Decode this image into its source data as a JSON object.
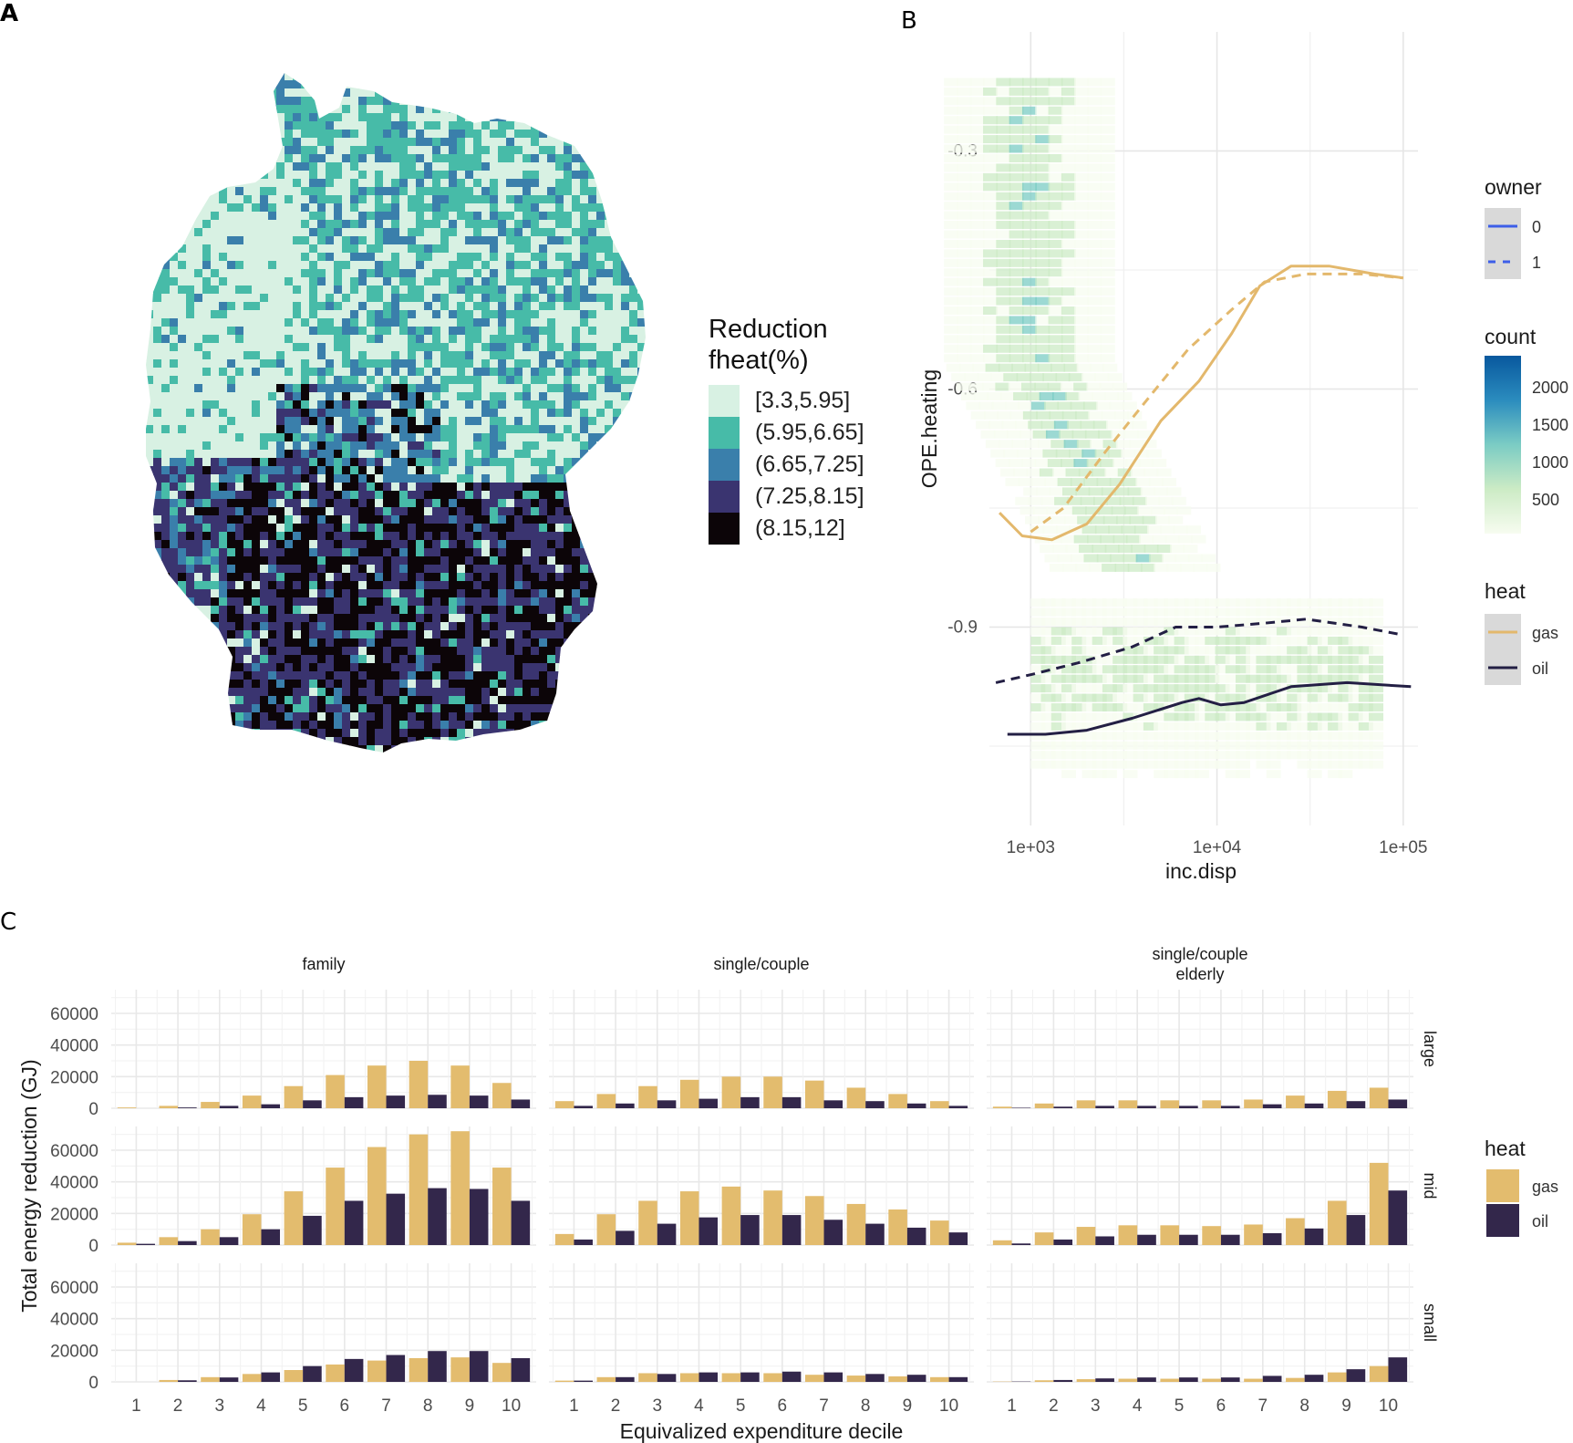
{
  "panels": {
    "a": "A",
    "b": "B",
    "c": "C"
  },
  "chart_data": [
    {
      "id": "A",
      "type": "choropleth-map",
      "region": "Germany",
      "legend": {
        "title_line1": "Reduction",
        "title_line2": "fheat(%)",
        "classes": [
          {
            "label": "[3.3,5.95]",
            "color": "#d8f1e3"
          },
          {
            "label": "(5.95,6.65]",
            "color": "#47bba8"
          },
          {
            "label": "(6.65,7.25]",
            "color": "#3a7fab"
          },
          {
            "label": "(7.25,8.15]",
            "color": "#3a3470"
          },
          {
            "label": "(8.15,12]",
            "color": "#0c0508"
          }
        ],
        "placement": "right"
      },
      "pattern_note": "North/West mostly lowest classes; South (Bavaria, Baden-Württemberg) mostly highest classes"
    },
    {
      "id": "B",
      "type": "heatmap+line",
      "xlabel": "inc.disp",
      "ylabel": "OPE.heating",
      "x_scale": "log10",
      "xlim": [
        600,
        120000
      ],
      "ylim": [
        -1.15,
        -0.15
      ],
      "x_ticks": [
        {
          "value": 1000,
          "label": "1e+03"
        },
        {
          "value": 10000,
          "label": "1e+04"
        },
        {
          "value": 100000,
          "label": "1e+05"
        }
      ],
      "y_ticks": [
        {
          "value": -0.3,
          "label": "-0.3"
        },
        {
          "value": -0.6,
          "label": "-0.6"
        },
        {
          "value": -0.9,
          "label": "-0.9"
        }
      ],
      "grid": true,
      "series": [
        {
          "name": "gas owner 0",
          "heat": "gas",
          "owner": "0",
          "dash": false,
          "points": [
            [
              680,
              -0.756
            ],
            [
              900,
              -0.785
            ],
            [
              1300,
              -0.79
            ],
            [
              2000,
              -0.77
            ],
            [
              3000,
              -0.72
            ],
            [
              5000,
              -0.64
            ],
            [
              8000,
              -0.59
            ],
            [
              12000,
              -0.53
            ],
            [
              17000,
              -0.47
            ],
            [
              25000,
              -0.445
            ],
            [
              40000,
              -0.445
            ],
            [
              70000,
              -0.455
            ],
            [
              100000,
              -0.46
            ]
          ]
        },
        {
          "name": "gas owner 1",
          "heat": "gas",
          "owner": "1",
          "dash": true,
          "points": [
            [
              1000,
              -0.78
            ],
            [
              1500,
              -0.75
            ],
            [
              2500,
              -0.68
            ],
            [
              4000,
              -0.62
            ],
            [
              7000,
              -0.55
            ],
            [
              12000,
              -0.5
            ],
            [
              18000,
              -0.465
            ],
            [
              30000,
              -0.455
            ],
            [
              60000,
              -0.455
            ],
            [
              100000,
              -0.46
            ]
          ]
        },
        {
          "name": "oil owner 0",
          "heat": "oil",
          "owner": "0",
          "dash": false,
          "points": [
            [
              750,
              -1.035
            ],
            [
              1200,
              -1.035
            ],
            [
              2000,
              -1.03
            ],
            [
              3500,
              -1.015
            ],
            [
              6500,
              -0.995
            ],
            [
              8000,
              -0.99
            ],
            [
              10500,
              -0.998
            ],
            [
              14000,
              -0.995
            ],
            [
              25000,
              -0.975
            ],
            [
              50000,
              -0.97
            ],
            [
              110000,
              -0.975
            ]
          ]
        },
        {
          "name": "oil owner 1",
          "heat": "oil",
          "owner": "1",
          "dash": true,
          "points": [
            [
              650,
              -0.97
            ],
            [
              1000,
              -0.96
            ],
            [
              1800,
              -0.945
            ],
            [
              3500,
              -0.925
            ],
            [
              6000,
              -0.9
            ],
            [
              10000,
              -0.9
            ],
            [
              18000,
              -0.895
            ],
            [
              30000,
              -0.89
            ],
            [
              60000,
              -0.9
            ],
            [
              100000,
              -0.91
            ]
          ]
        }
      ],
      "density_clusters": [
        {
          "x": [
            2000,
            60000
          ],
          "y": [
            -0.8,
            -0.2
          ],
          "peak": 2000
        },
        {
          "x": [
            1000,
            80000
          ],
          "y": [
            -1.1,
            -0.85
          ],
          "peak": 1500
        }
      ],
      "legends": {
        "owner": {
          "title": "owner",
          "items": [
            {
              "label": "0",
              "style": "solid"
            },
            {
              "label": "1",
              "style": "dashed"
            }
          ],
          "color": "#3d5ee8"
        },
        "count": {
          "title": "count",
          "ticks": [
            "2000",
            "1500",
            "1000",
            "500"
          ],
          "range": [
            0,
            2200
          ],
          "colors": [
            "#f7fcf0",
            "#ccebc5",
            "#7bccc4",
            "#2b8cbe",
            "#08589e"
          ]
        },
        "heat": {
          "title": "heat",
          "items": [
            {
              "label": "gas",
              "color": "#e3b86c"
            },
            {
              "label": "oil",
              "color": "#231f44"
            }
          ]
        }
      }
    },
    {
      "id": "C",
      "type": "bar",
      "xlabel": "Equivalized expenditure decile",
      "ylabel": "Total energy reduction (GJ)",
      "categories": [
        "1",
        "2",
        "3",
        "4",
        "5",
        "6",
        "7",
        "8",
        "9",
        "10"
      ],
      "ylim": [
        0,
        75000
      ],
      "y_ticks": [
        "0",
        "20000",
        "40000",
        "60000"
      ],
      "col_facets": [
        "family",
        "single/couple",
        "single/couple\nelderly"
      ],
      "row_facets": [
        "large",
        "mid",
        "small"
      ],
      "legend": {
        "title": "heat",
        "items": [
          {
            "label": "gas",
            "color": "#e3bc6e"
          },
          {
            "label": "oil",
            "color": "#33274b"
          }
        ],
        "placement": "right"
      },
      "facets": [
        {
          "col": "family",
          "row": "large",
          "gas": [
            500,
            1500,
            4000,
            8000,
            14000,
            21000,
            27000,
            30000,
            27000,
            16000
          ],
          "oil": [
            0,
            500,
            1500,
            2500,
            5000,
            7000,
            8000,
            8500,
            8000,
            5500
          ]
        },
        {
          "col": "single/couple",
          "row": "large",
          "gas": [
            4500,
            9000,
            14000,
            18000,
            20000,
            20000,
            17500,
            13000,
            9000,
            4500
          ],
          "oil": [
            1500,
            3000,
            5000,
            6000,
            7000,
            7000,
            5000,
            4500,
            3000,
            1500
          ]
        },
        {
          "col": "single/couple\nelderly",
          "row": "large",
          "gas": [
            1000,
            3000,
            5000,
            5000,
            5000,
            5000,
            5500,
            8000,
            11000,
            13000
          ],
          "oil": [
            300,
            1000,
            1500,
            1500,
            1500,
            1500,
            2500,
            3000,
            4500,
            5500
          ]
        },
        {
          "col": "family",
          "row": "mid",
          "gas": [
            1500,
            5000,
            10000,
            19500,
            34000,
            49000,
            62000,
            70000,
            72000,
            49000
          ],
          "oil": [
            800,
            2500,
            5000,
            10000,
            18500,
            28000,
            32500,
            36000,
            35500,
            28000
          ]
        },
        {
          "col": "single/couple",
          "row": "mid",
          "gas": [
            7000,
            19500,
            28000,
            34000,
            37000,
            34500,
            31000,
            26000,
            22500,
            15500
          ],
          "oil": [
            3500,
            9000,
            13500,
            17500,
            19000,
            19000,
            16000,
            13500,
            11000,
            8000
          ]
        },
        {
          "col": "single/couple\nelderly",
          "row": "mid",
          "gas": [
            3000,
            8000,
            11500,
            12500,
            12500,
            12000,
            13000,
            17000,
            28000,
            52000
          ],
          "oil": [
            1000,
            3500,
            5500,
            6500,
            6500,
            6500,
            7500,
            10500,
            19000,
            34500
          ]
        },
        {
          "col": "family",
          "row": "small",
          "gas": [
            0,
            1200,
            3000,
            5000,
            7500,
            11000,
            13500,
            15000,
            15500,
            12000
          ],
          "oil": [
            0,
            1000,
            2800,
            6000,
            10000,
            14500,
            17000,
            19500,
            19500,
            15000
          ]
        },
        {
          "col": "single/couple",
          "row": "small",
          "gas": [
            800,
            3000,
            5500,
            5500,
            5500,
            5500,
            4500,
            4000,
            3500,
            3000
          ],
          "oil": [
            800,
            3000,
            5000,
            6000,
            6000,
            6500,
            6000,
            5000,
            4500,
            3000
          ]
        },
        {
          "col": "single/couple\nelderly",
          "row": "small",
          "gas": [
            200,
            1000,
            1700,
            2000,
            2000,
            2000,
            2000,
            2500,
            6000,
            10000
          ],
          "oil": [
            200,
            1200,
            2200,
            2800,
            2800,
            2800,
            3800,
            4500,
            8000,
            15500
          ]
        }
      ]
    }
  ]
}
